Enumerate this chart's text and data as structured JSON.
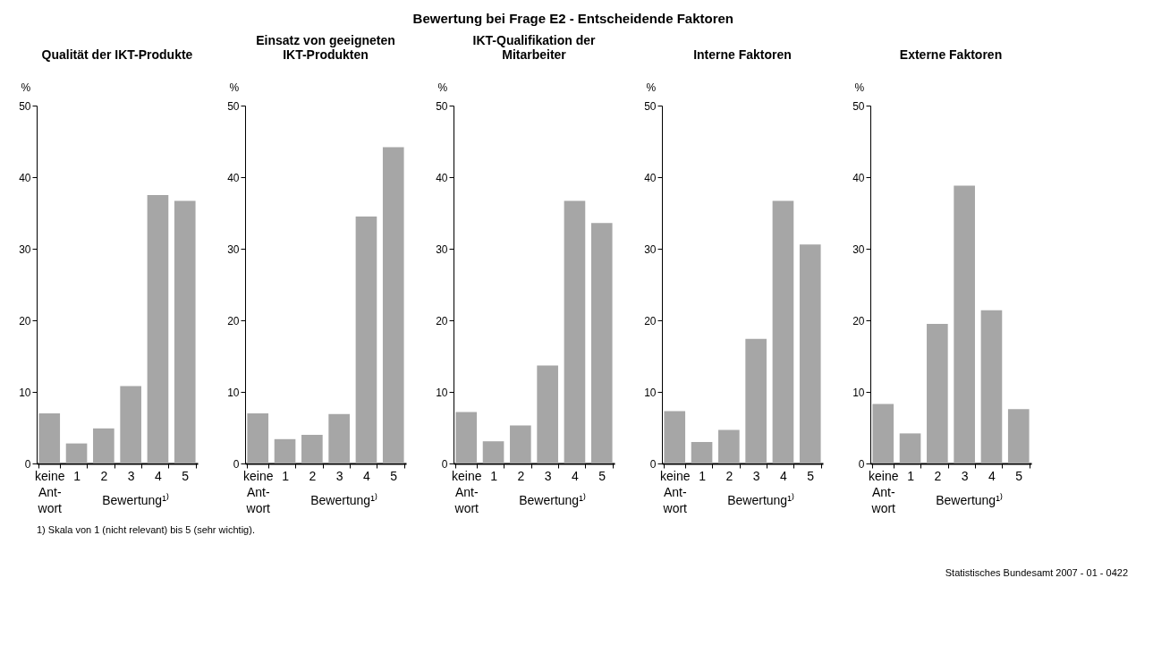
{
  "chart_data": [
    {
      "type": "other",
      "title": "Bewertung bei Frage E2 - Entscheidende Faktoren",
      "annotations": [
        "1) Skala von 1 (nicht relevant) bis 5 (sehr wichtig).",
        "Statistisches Bundesamt 2007 - 01 - 0422"
      ]
    },
    {
      "type": "bar",
      "title": "Qualität der IKT-Produkte",
      "xlabel": "Bewertung¹⁾",
      "ylabel": "%",
      "categories": [
        "keine\nAnt-\nwort",
        "1",
        "2",
        "3",
        "4",
        "5"
      ],
      "values": [
        7.0,
        2.8,
        4.9,
        10.8,
        37.5,
        36.7
      ],
      "color": "#a6a6a6",
      "ylim": [
        0,
        50
      ],
      "yticks": [
        0,
        10,
        20,
        30,
        40,
        50
      ]
    },
    {
      "type": "bar",
      "title": "Einsatz von geeigneten\nIKT-Produkten",
      "xlabel": "Bewertung¹⁾",
      "ylabel": "%",
      "categories": [
        "keine\nAnt-\nwort",
        "1",
        "2",
        "3",
        "4",
        "5"
      ],
      "values": [
        7.0,
        3.4,
        4.0,
        6.9,
        34.5,
        44.2
      ],
      "color": "#a6a6a6",
      "ylim": [
        0,
        50
      ],
      "yticks": [
        0,
        10,
        20,
        30,
        40,
        50
      ]
    },
    {
      "type": "bar",
      "title": "IKT-Qualifikation der\nMitarbeiter",
      "xlabel": "Bewertung¹⁾",
      "ylabel": "%",
      "categories": [
        "keine\nAnt-\nwort",
        "1",
        "2",
        "3",
        "4",
        "5"
      ],
      "values": [
        7.2,
        3.1,
        5.3,
        13.7,
        36.7,
        33.6
      ],
      "color": "#a6a6a6",
      "ylim": [
        0,
        50
      ],
      "yticks": [
        0,
        10,
        20,
        30,
        40,
        50
      ]
    },
    {
      "type": "bar",
      "title": "Interne Faktoren",
      "xlabel": "Bewertung¹⁾",
      "ylabel": "%",
      "categories": [
        "keine\nAnt-\nwort",
        "1",
        "2",
        "3",
        "4",
        "5"
      ],
      "values": [
        7.3,
        3.0,
        4.7,
        17.4,
        36.7,
        30.6
      ],
      "color": "#a6a6a6",
      "ylim": [
        0,
        50
      ],
      "yticks": [
        0,
        10,
        20,
        30,
        40,
        50
      ]
    },
    {
      "type": "bar",
      "title": "Externe Faktoren",
      "xlabel": "Bewertung¹⁾",
      "ylabel": "%",
      "categories": [
        "keine\nAnt-\nwort",
        "1",
        "2",
        "3",
        "4",
        "5"
      ],
      "values": [
        8.3,
        4.2,
        19.5,
        38.8,
        21.4,
        7.6
      ],
      "color": "#a6a6a6",
      "ylim": [
        0,
        50
      ],
      "yticks": [
        0,
        10,
        20,
        30,
        40,
        50
      ]
    }
  ]
}
